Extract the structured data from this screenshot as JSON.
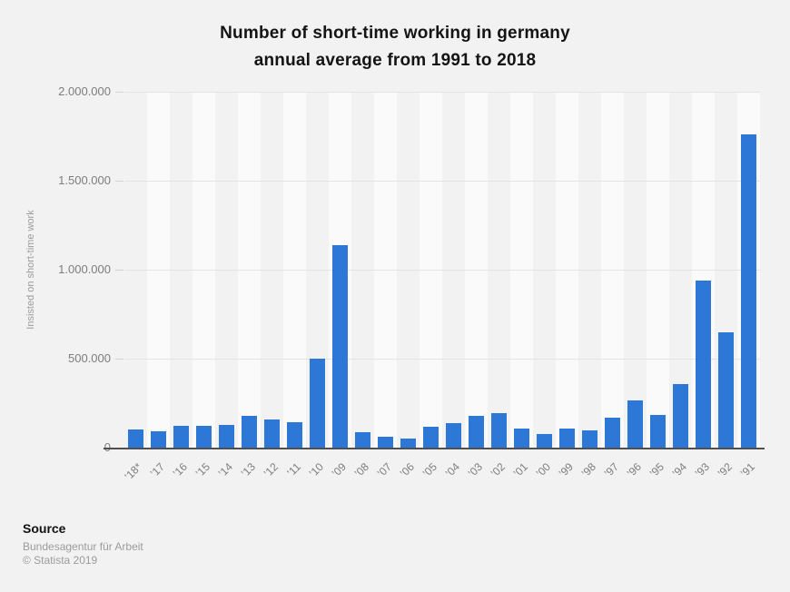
{
  "title": {
    "line1": "Number of short-time working in germany",
    "line2": "annual average from 1991 to 2018"
  },
  "chart_data": {
    "type": "bar",
    "title": "Number of short-time working in germany annual average from 1991 to 2018",
    "xlabel": "",
    "ylabel": "Insisted on short-time work",
    "ylim": [
      0,
      2000000
    ],
    "ytick_labels": [
      "2.000.000",
      "1.500.000",
      "1.000.000",
      "500.000",
      "0"
    ],
    "grid": true,
    "legend": "none",
    "categories": [
      "’18*",
      "’17",
      "’16",
      "’15",
      "’14",
      "’13",
      "’12",
      "’11",
      "’10",
      "’09",
      "’08",
      "’07",
      "’06",
      "’05",
      "’04",
      "’03",
      "’02",
      "’01",
      "’00",
      "’99",
      "’98",
      "’97",
      "’96",
      "’95",
      "’94",
      "’93",
      "’92",
      "’91"
    ],
    "values": [
      105000,
      95000,
      125000,
      125000,
      130000,
      185000,
      165000,
      150000,
      505000,
      1140000,
      90000,
      65000,
      55000,
      120000,
      140000,
      185000,
      200000,
      110000,
      80000,
      110000,
      100000,
      175000,
      270000,
      190000,
      360000,
      940000,
      650000,
      1760000
    ]
  },
  "footer": {
    "source_label": "Source",
    "source_name": "Bundesagentur für Arbeit",
    "copyright": "© Statista 2019"
  },
  "colors": {
    "bar": "#2d78d7",
    "background": "#f2f2f2",
    "stripe": "#fafafa",
    "gridline": "#e4e4e4",
    "axis_line": "#4f4f4f",
    "tick_text": "#7d7d7d",
    "title_text": "#141414",
    "footer_text": "#9b9b9b"
  }
}
